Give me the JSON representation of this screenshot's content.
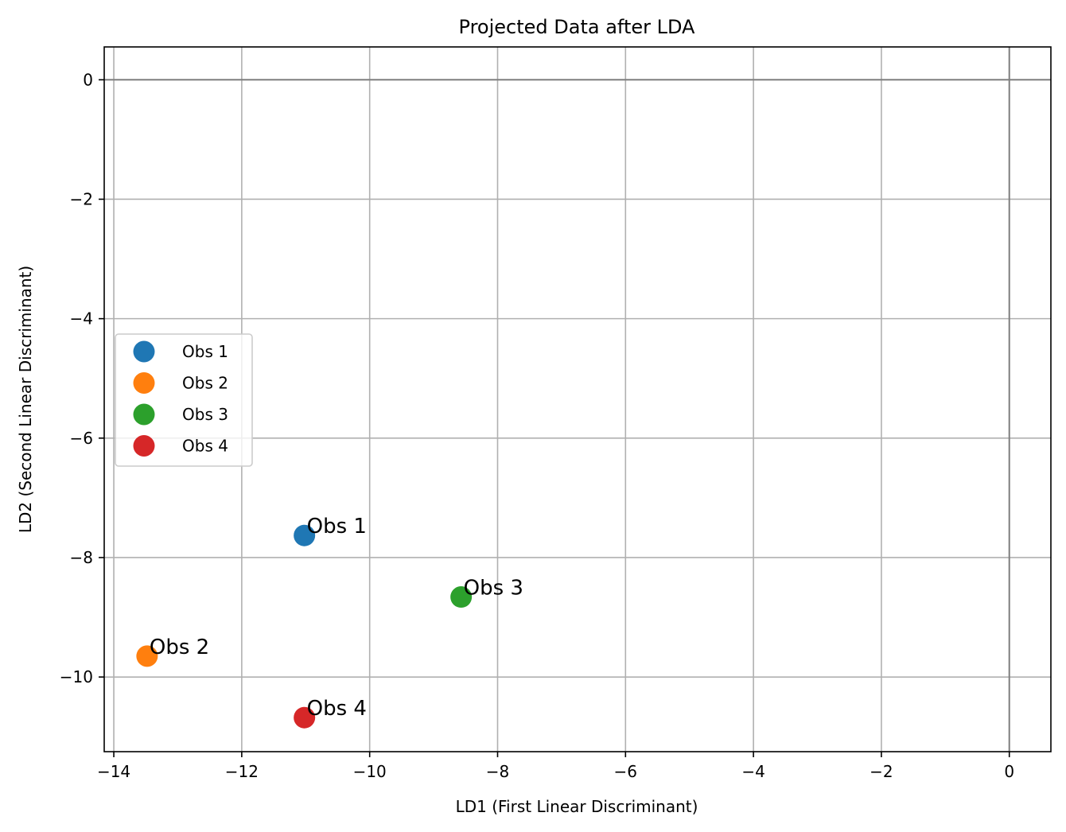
{
  "chart_data": {
    "type": "scatter",
    "title": "Projected Data after LDA",
    "xlabel": "LD1 (First Linear Discriminant)",
    "ylabel": "LD2 (Second Linear Discriminant)",
    "xlim": [
      -14.15,
      0.65
    ],
    "ylim": [
      -11.25,
      0.55
    ],
    "xticks": [
      -14,
      -12,
      -10,
      -8,
      -6,
      -4,
      -2,
      0
    ],
    "yticks": [
      0,
      -2,
      -4,
      -6,
      -8,
      -10
    ],
    "grid": true,
    "reference_lines": {
      "x": 0,
      "y": 0
    },
    "legend_position": "center-left",
    "series": [
      {
        "name": "Obs 1",
        "color": "#1f77b4",
        "x": -11.02,
        "y": -7.63,
        "label": "Obs 1"
      },
      {
        "name": "Obs 2",
        "color": "#ff7f0e",
        "x": -13.48,
        "y": -9.65,
        "label": "Obs 2"
      },
      {
        "name": "Obs 3",
        "color": "#2ca02c",
        "x": -8.57,
        "y": -8.66,
        "label": "Obs 3"
      },
      {
        "name": "Obs 4",
        "color": "#d62728",
        "x": -11.02,
        "y": -10.68,
        "label": "Obs 4"
      }
    ]
  }
}
